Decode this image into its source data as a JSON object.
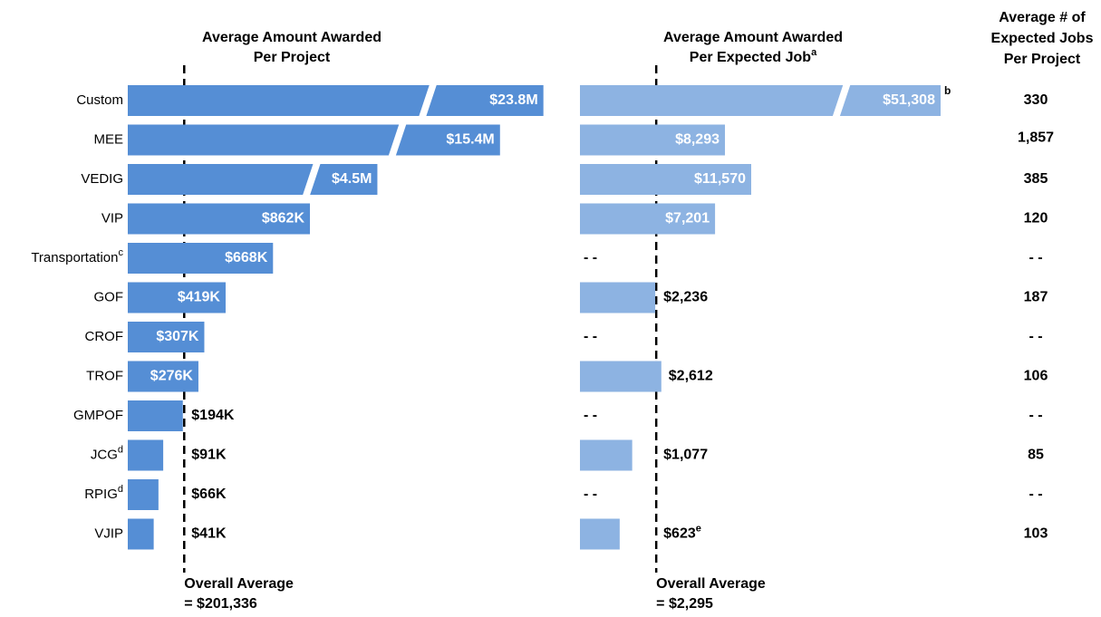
{
  "chart_data": {
    "type": "bar",
    "categories": [
      "Custom",
      "MEE",
      "VEDIG",
      "VIP",
      "Transportation",
      "GOF",
      "CROF",
      "TROF",
      "GMPOF",
      "JCG",
      "RPIG",
      "VJIP"
    ],
    "category_notes": [
      null,
      null,
      null,
      null,
      "c",
      null,
      null,
      null,
      null,
      "d",
      "d",
      null
    ],
    "missing_label": "- -",
    "panels": [
      {
        "title": [
          "Average Amount Awarded",
          "Per Project"
        ],
        "title_note": null,
        "color": "#558ed5",
        "values": [
          23800000,
          15400000,
          4500000,
          862000,
          668000,
          419000,
          307000,
          276000,
          194000,
          91000,
          66000,
          41000
        ],
        "value_labels": [
          "$23.8M",
          "$15.4M",
          "$4.5M",
          "$862K",
          "$668K",
          "$419K",
          "$307K",
          "$276K",
          "$194K",
          "$91K",
          "$66K",
          "$41K"
        ],
        "value_notes": [
          null,
          null,
          null,
          null,
          null,
          null,
          null,
          null,
          null,
          null,
          null,
          null
        ],
        "average": {
          "label": "Overall Average",
          "value": 201336,
          "value_label": "= $201,336"
        }
      },
      {
        "title": [
          "Average Amount Awarded",
          "Per Expected Job"
        ],
        "title_note": "a",
        "color": "#8db3e2",
        "values": [
          51308,
          8293,
          11570,
          7201,
          null,
          2236,
          null,
          2612,
          null,
          1077,
          null,
          623
        ],
        "value_labels": [
          "$51,308",
          "$8,293",
          "$11,570",
          "$7,201",
          null,
          "$2,236",
          null,
          "$2,612",
          null,
          "$1,077",
          null,
          "$623"
        ],
        "value_notes": [
          "b",
          null,
          null,
          null,
          null,
          null,
          null,
          null,
          null,
          null,
          null,
          "e"
        ],
        "average": {
          "label": "Overall Average",
          "value": 2295,
          "value_label": "= $2,295"
        }
      }
    ],
    "jobs": {
      "title": [
        "Average # of",
        "Expected Jobs",
        "Per Project"
      ],
      "values": [
        330,
        1857,
        385,
        120,
        null,
        187,
        null,
        106,
        null,
        85,
        null,
        103
      ],
      "value_labels": [
        "330",
        "1,857",
        "385",
        "120",
        null,
        "187",
        null,
        "106",
        null,
        "85",
        null,
        "103"
      ]
    }
  }
}
